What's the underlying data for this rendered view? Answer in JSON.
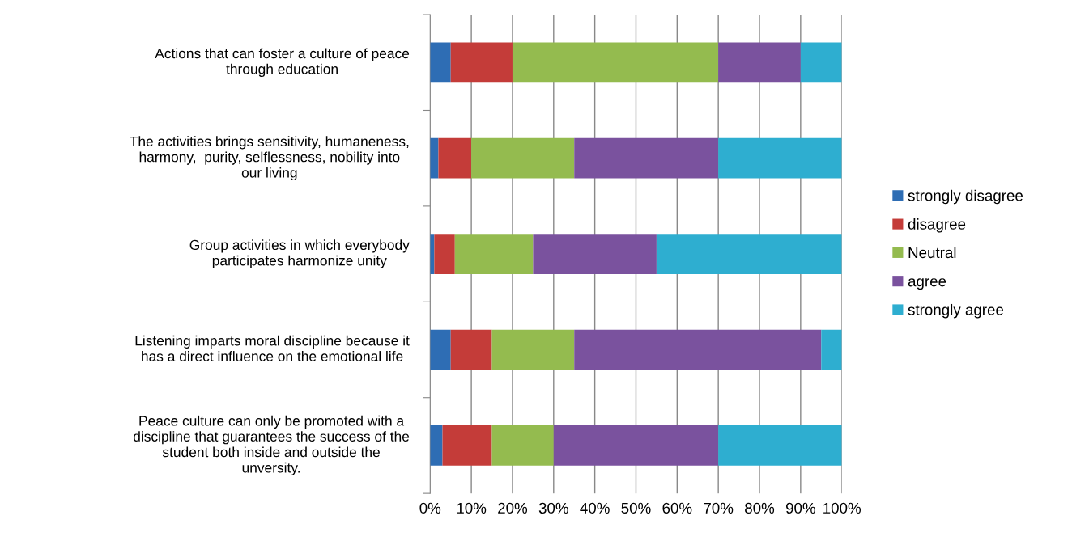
{
  "chart_data": {
    "type": "bar",
    "orientation": "horizontal",
    "stacked": true,
    "categories": [
      "Actions that can foster a culture of peace\nthrough education",
      "The activities brings sensitivity, humaneness,\nharmony,  purity, selflessness, nobility into\nour living",
      "Group activities in which everybody\nparticipates harmonize unity",
      "Listening imparts moral discipline because it\nhas a direct influence on the emotional life",
      "Peace culture can only be promoted with a\ndiscipline that guarantees the success of the\nstudent both inside and outside the\nunversity."
    ],
    "series": [
      {
        "name": "strongly disagree",
        "color": "#2e6db4",
        "values": [
          5,
          2,
          1,
          5,
          3
        ]
      },
      {
        "name": "disagree",
        "color": "#c43c39",
        "values": [
          15,
          8,
          5,
          10,
          12
        ]
      },
      {
        "name": "Neutral",
        "color": "#94bb4f",
        "values": [
          50,
          25,
          19,
          20,
          15
        ]
      },
      {
        "name": "agree",
        "color": "#7a529e",
        "values": [
          20,
          35,
          30,
          60,
          40
        ]
      },
      {
        "name": "strongly agree",
        "color": "#2eaed0",
        "values": [
          10,
          30,
          45,
          5,
          30
        ]
      }
    ],
    "xlim": [
      0,
      100
    ],
    "xticks": [
      {
        "value": 0,
        "label": "0%"
      },
      {
        "value": 10,
        "label": "10%"
      },
      {
        "value": 20,
        "label": "20%"
      },
      {
        "value": 30,
        "label": "30%"
      },
      {
        "value": 40,
        "label": "40%"
      },
      {
        "value": 50,
        "label": "50%"
      },
      {
        "value": 60,
        "label": "60%"
      },
      {
        "value": 70,
        "label": "70%"
      },
      {
        "value": 80,
        "label": "80%"
      },
      {
        "value": 90,
        "label": "90%"
      },
      {
        "value": 100,
        "label": "100%"
      }
    ],
    "grid": "x",
    "legend": "right"
  }
}
